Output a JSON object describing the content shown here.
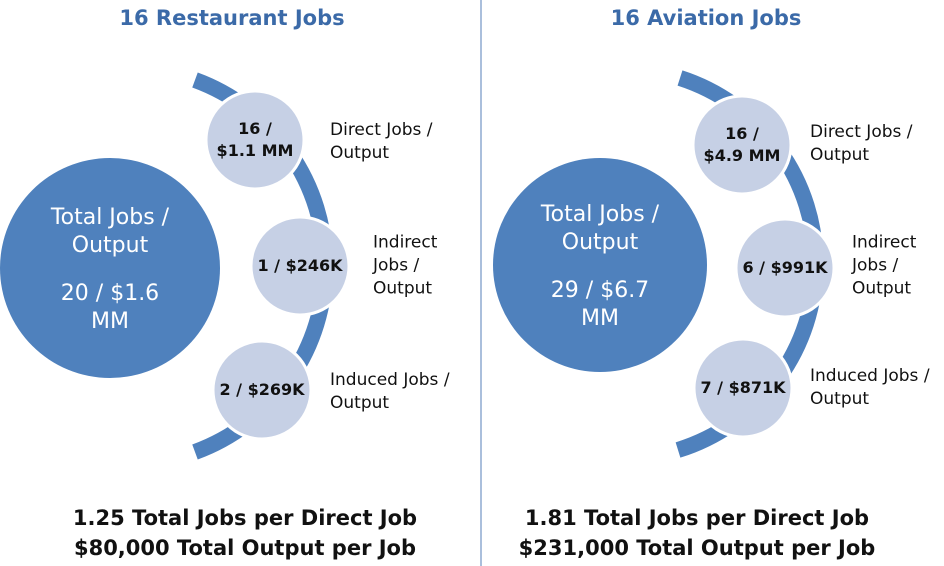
{
  "panels": [
    {
      "title": "16 Restaurant Jobs",
      "total": {
        "label": [
          "Total Jobs /",
          "Output"
        ],
        "value": [
          "20 / $1.6",
          "MM"
        ]
      },
      "items": [
        {
          "value": [
            "16 /",
            "$1.1 MM"
          ],
          "label": [
            "Direct Jobs /",
            "Output"
          ]
        },
        {
          "value": [
            "1 / $246K"
          ],
          "label": [
            "Indirect",
            "Jobs /",
            "Output"
          ]
        },
        {
          "value": [
            "2 / $269K"
          ],
          "label": [
            "Induced Jobs /",
            "Output"
          ]
        }
      ],
      "summary": [
        "1.25 Total Jobs per Direct Job",
        "$80,000 Total Output per Job"
      ]
    },
    {
      "title": "16 Aviation Jobs",
      "total": {
        "label": [
          "Total Jobs /",
          "Output"
        ],
        "value": [
          "29 / $6.7",
          "MM"
        ]
      },
      "items": [
        {
          "value": [
            "16 /",
            "$4.9 MM"
          ],
          "label": [
            "Direct Jobs /",
            "Output"
          ]
        },
        {
          "value": [
            "6 / $991K"
          ],
          "label": [
            "Indirect",
            "Jobs /",
            "Output"
          ]
        },
        {
          "value": [
            "7 / $871K"
          ],
          "label": [
            "Induced Jobs /",
            "Output"
          ]
        }
      ],
      "summary": [
        "1.81 Total Jobs per Direct Job",
        "$231,000 Total Output per Job"
      ]
    }
  ]
}
